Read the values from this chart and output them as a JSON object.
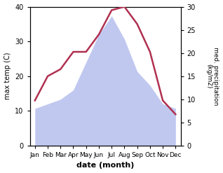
{
  "months": [
    "Jan",
    "Feb",
    "Mar",
    "Apr",
    "May",
    "Jun",
    "Jul",
    "Aug",
    "Sep",
    "Oct",
    "Nov",
    "Dec"
  ],
  "temperature": [
    13,
    20,
    22,
    27,
    27,
    32,
    39,
    40,
    35,
    27,
    13,
    9
  ],
  "precipitation": [
    8,
    9,
    10,
    12,
    18,
    24,
    28,
    23,
    16,
    13,
    9,
    8
  ],
  "temp_color": "#b03050",
  "precip_color_fill": "#c0c8f0",
  "ylabel_left": "max temp (C)",
  "ylabel_right": "med. precipitation\n(kg/m2)",
  "xlabel": "date (month)",
  "ylim_left": [
    0,
    40
  ],
  "ylim_right": [
    0,
    30
  ],
  "yticks_left": [
    0,
    10,
    20,
    30,
    40
  ],
  "yticks_right": [
    0,
    5,
    10,
    15,
    20,
    25,
    30
  ],
  "background_color": "#ffffff"
}
